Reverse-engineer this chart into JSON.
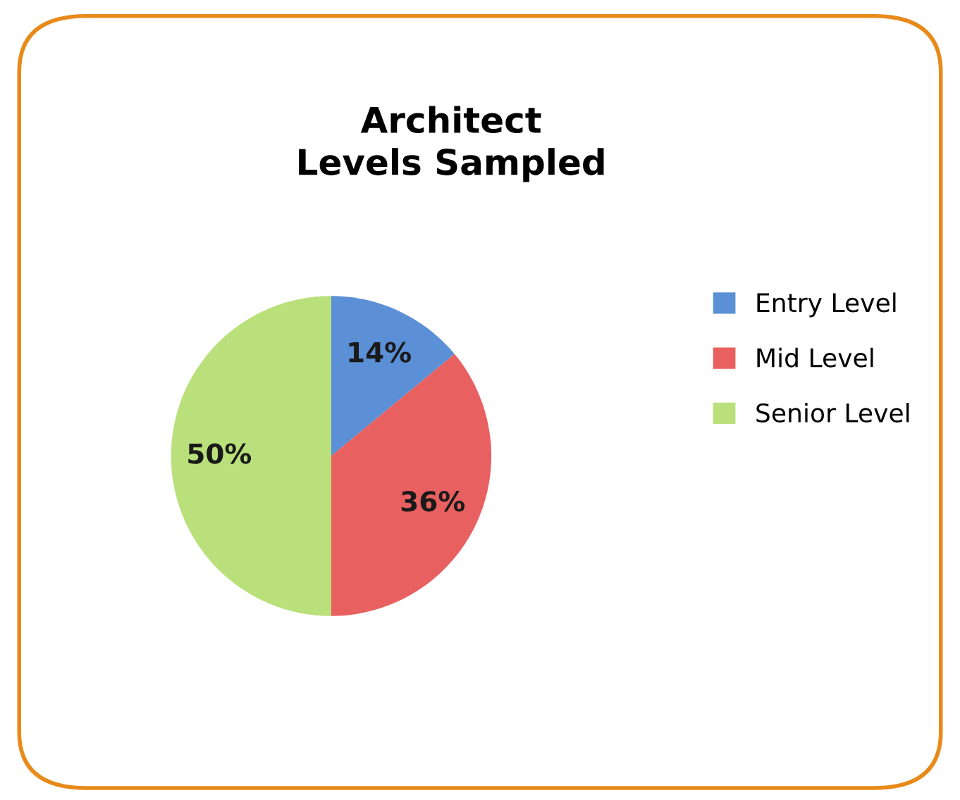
{
  "chart_data": {
    "type": "pie",
    "title": "Architect\nLevels Sampled",
    "categories": [
      "Entry Level",
      "Mid Level",
      "Senior Level"
    ],
    "values": [
      14,
      36,
      50
    ],
    "value_labels": [
      "14%",
      "36%",
      "50%"
    ],
    "colors": [
      "#5b8fd6",
      "#e8605f",
      "#b9e07a"
    ],
    "legend": "right"
  }
}
